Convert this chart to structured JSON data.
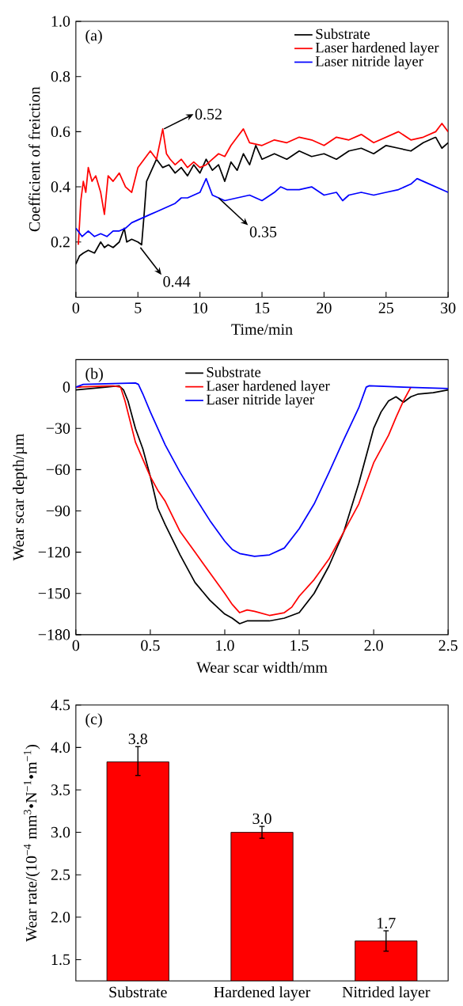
{
  "chart_data": [
    {
      "type": "line",
      "xlabel": "Time/min",
      "ylabel": "Coefficient of freiction",
      "xlim": [
        0,
        30
      ],
      "ylim": [
        0,
        1.0
      ],
      "xticks": [
        0,
        5,
        10,
        15,
        20,
        25,
        30
      ],
      "yticks": [
        0.2,
        0.4,
        0.6,
        0.8,
        {
          "value": 1.0,
          "label": "1.0"
        }
      ],
      "legend": "top right",
      "annotations": [
        "(a)",
        {
          "text": "0.52",
          "x": 7.1,
          "y": 0.61
        },
        {
          "text": "0.35",
          "x": 11.5,
          "y": 0.36
        },
        {
          "text": "0.44",
          "x": 5.2,
          "y": 0.18
        }
      ],
      "series": [
        {
          "name": "Substrate",
          "color": "#000000",
          "x": [
            0,
            0.3,
            0.6,
            1,
            1.5,
            2,
            2.3,
            2.6,
            3,
            3.5,
            3.9,
            4.1,
            4.5,
            5,
            5.3,
            5.5,
            5.7,
            6,
            6.5,
            7,
            7.5,
            8,
            8.5,
            9,
            9.5,
            10,
            10.5,
            11,
            11.5,
            12,
            12.5,
            13,
            13.5,
            14,
            14.5,
            15,
            16,
            17,
            18,
            19,
            20,
            21,
            22,
            23,
            24,
            25,
            26,
            27,
            28,
            29,
            29.5,
            30
          ],
          "values": [
            0.12,
            0.15,
            0.16,
            0.17,
            0.16,
            0.2,
            0.18,
            0.19,
            0.18,
            0.2,
            0.25,
            0.2,
            0.21,
            0.2,
            0.19,
            0.3,
            0.42,
            0.45,
            0.5,
            0.47,
            0.48,
            0.45,
            0.47,
            0.44,
            0.48,
            0.45,
            0.5,
            0.46,
            0.48,
            0.42,
            0.49,
            0.46,
            0.52,
            0.48,
            0.55,
            0.5,
            0.52,
            0.5,
            0.53,
            0.51,
            0.52,
            0.5,
            0.53,
            0.54,
            0.52,
            0.55,
            0.54,
            0.53,
            0.56,
            0.58,
            0.54,
            0.56
          ]
        },
        {
          "name": "Laser hardened layer",
          "color": "#ff0000",
          "x": [
            0.2,
            0.4,
            0.6,
            0.8,
            1,
            1.3,
            1.6,
            2,
            2.3,
            2.6,
            3,
            3.5,
            4,
            4.5,
            5,
            5.5,
            6,
            6.5,
            7,
            7.3,
            7.6,
            8,
            8.5,
            9,
            9.5,
            10,
            10.5,
            11,
            11.5,
            12,
            12.5,
            13,
            13.5,
            14,
            15,
            16,
            17,
            18,
            19,
            20,
            21,
            22,
            23,
            24,
            25,
            26,
            27,
            28,
            29,
            29.5,
            30
          ],
          "values": [
            0.19,
            0.35,
            0.42,
            0.38,
            0.47,
            0.42,
            0.44,
            0.38,
            0.3,
            0.44,
            0.42,
            0.45,
            0.4,
            0.38,
            0.47,
            0.5,
            0.53,
            0.5,
            0.61,
            0.52,
            0.5,
            0.48,
            0.5,
            0.47,
            0.49,
            0.47,
            0.48,
            0.5,
            0.52,
            0.51,
            0.55,
            0.58,
            0.61,
            0.56,
            0.55,
            0.57,
            0.56,
            0.58,
            0.57,
            0.55,
            0.58,
            0.57,
            0.59,
            0.56,
            0.58,
            0.6,
            0.57,
            0.58,
            0.6,
            0.63,
            0.6
          ]
        },
        {
          "name": "Laser nitride layer",
          "color": "#0000ff",
          "x": [
            0,
            0.5,
            1,
            1.5,
            2,
            2.5,
            3,
            3.5,
            4,
            4.5,
            5,
            5.5,
            6,
            6.5,
            7,
            7.5,
            8,
            8.5,
            9,
            9.5,
            10,
            10.5,
            11,
            11.5,
            12,
            13,
            14,
            15,
            16,
            16.5,
            17,
            18,
            19,
            20,
            21,
            21.5,
            22,
            23,
            24,
            25,
            26,
            27,
            27.5,
            28,
            29,
            30
          ],
          "values": [
            0.25,
            0.22,
            0.24,
            0.22,
            0.23,
            0.22,
            0.24,
            0.24,
            0.25,
            0.27,
            0.28,
            0.29,
            0.3,
            0.31,
            0.32,
            0.33,
            0.34,
            0.36,
            0.36,
            0.37,
            0.38,
            0.43,
            0.37,
            0.36,
            0.35,
            0.36,
            0.37,
            0.35,
            0.38,
            0.4,
            0.39,
            0.39,
            0.4,
            0.37,
            0.38,
            0.35,
            0.37,
            0.38,
            0.37,
            0.38,
            0.39,
            0.41,
            0.43,
            0.42,
            0.4,
            0.38
          ]
        }
      ]
    },
    {
      "type": "line",
      "xlabel": "Wear scar width/mm",
      "ylabel": "Wear scar depth/µm",
      "xlim": [
        0,
        2.5
      ],
      "ylim": [
        -180,
        20
      ],
      "xticks": [
        0,
        0.5,
        {
          "value": 1.0,
          "label": "1.0"
        },
        1.5,
        {
          "value": 2.0,
          "label": "2.0"
        },
        2.5
      ],
      "yticks": [
        {
          "value": -180,
          "label": "−180"
        },
        {
          "value": -150,
          "label": "−150"
        },
        {
          "value": -120,
          "label": "−120"
        },
        {
          "value": -90,
          "label": "−90"
        },
        {
          "value": -60,
          "label": "−60"
        },
        {
          "value": -30,
          "label": "−30"
        },
        0
      ],
      "legend": "top",
      "annotations": [
        "(b)"
      ],
      "series": [
        {
          "name": "Substrate",
          "color": "#000000",
          "x": [
            0,
            0.1,
            0.2,
            0.29,
            0.32,
            0.35,
            0.4,
            0.45,
            0.5,
            0.55,
            0.6,
            0.7,
            0.8,
            0.9,
            1.0,
            1.05,
            1.1,
            1.15,
            1.2,
            1.3,
            1.4,
            1.5,
            1.6,
            1.7,
            1.8,
            1.9,
            1.95,
            2.0,
            2.05,
            2.1,
            2.15,
            2.2,
            2.25,
            2.3,
            2.4,
            2.5
          ],
          "values": [
            -2,
            -1,
            0,
            1,
            -2,
            -10,
            -30,
            -45,
            -65,
            -88,
            -100,
            -122,
            -142,
            -155,
            -165,
            -168,
            -172,
            -170,
            -170,
            -170,
            -168,
            -164,
            -150,
            -130,
            -105,
            -70,
            -50,
            -30,
            -18,
            -10,
            -7,
            -11,
            -7,
            -5,
            -4,
            -2
          ]
        },
        {
          "name": "Laser hardened layer",
          "color": "#ff0000",
          "x": [
            0,
            0.25,
            0.3,
            0.33,
            0.4,
            0.5,
            0.55,
            0.6,
            0.7,
            0.8,
            0.9,
            1.0,
            1.05,
            1.1,
            1.15,
            1.2,
            1.3,
            1.4,
            1.45,
            1.5,
            1.6,
            1.7,
            1.8,
            1.9,
            1.95,
            2.0,
            2.1,
            2.15,
            2.2,
            2.25
          ],
          "values": [
            0,
            1,
            0,
            -10,
            -40,
            -65,
            -75,
            -83,
            -105,
            -120,
            -135,
            -150,
            -158,
            -164,
            -162,
            -163,
            -166,
            -164,
            -160,
            -152,
            -140,
            -125,
            -105,
            -85,
            -70,
            -55,
            -35,
            -22,
            -10,
            0
          ]
        },
        {
          "name": "Laser nitride layer",
          "color": "#0000ff",
          "x": [
            0,
            0.05,
            0.4,
            0.42,
            0.45,
            0.5,
            0.55,
            0.6,
            0.7,
            0.8,
            0.9,
            1.0,
            1.05,
            1.1,
            1.2,
            1.3,
            1.4,
            1.5,
            1.6,
            1.7,
            1.8,
            1.9,
            1.95,
            1.97,
            2.2,
            2.5
          ],
          "values": [
            0,
            2,
            3,
            2,
            -5,
            -18,
            -30,
            -42,
            -62,
            -80,
            -97,
            -112,
            -118,
            -121,
            -123,
            -122,
            -117,
            -103,
            -85,
            -62,
            -38,
            -15,
            0,
            1,
            0,
            -1
          ]
        }
      ]
    },
    {
      "type": "bar",
      "ylabel": "Wear rate/(10$^{−4}$ mm$^{3}$•N$^{−1}$•m$^{−1}$)",
      "ylim": [
        1.25,
        4.5
      ],
      "yticks": [
        1.5,
        {
          "value": 2.0,
          "label": "2.0"
        },
        2.5,
        {
          "value": 3.0,
          "label": "3.0"
        },
        3.5,
        {
          "value": 4.0,
          "label": "4.0"
        },
        4.5
      ],
      "categories": [
        "Substrate",
        "Hardened layer",
        "Nitrided layer"
      ],
      "values": [
        3.83,
        3.0,
        1.72
      ],
      "color": "#ff0000",
      "errors": [
        [
          3.67,
          4.01
        ],
        [
          2.93,
          3.07
        ],
        [
          1.6,
          1.84
        ]
      ],
      "value_labels": [
        "3.8",
        "3.0",
        "1.7"
      ],
      "annotations": [
        "(c)"
      ]
    }
  ]
}
